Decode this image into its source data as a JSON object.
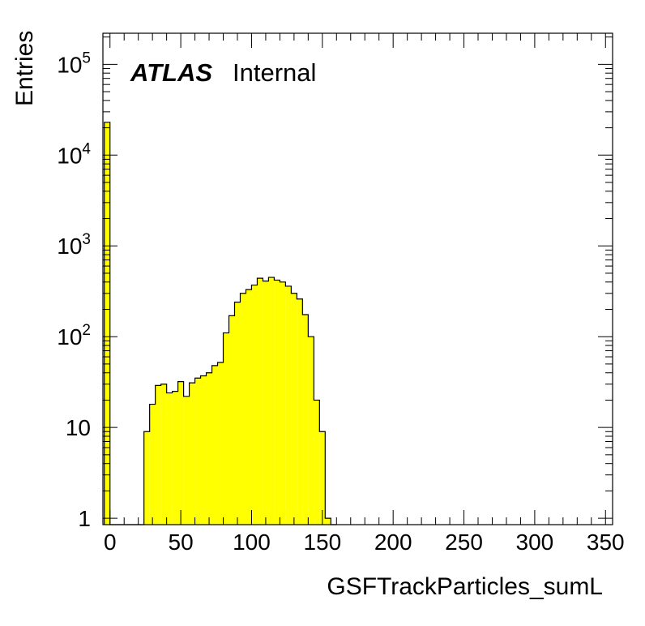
{
  "chart_data": {
    "type": "bar",
    "style": "histogram",
    "title": "",
    "xlabel": "GSFTrackParticles_sumL",
    "ylabel": "Entries",
    "xlim": [
      -5,
      355
    ],
    "ylim": [
      0.85,
      220000
    ],
    "yscale": "log",
    "x_ticks": [
      "0",
      "50",
      "100",
      "150",
      "200",
      "250",
      "300",
      "350"
    ],
    "y_ticks": [
      {
        "value": 1,
        "base": "1",
        "exp": ""
      },
      {
        "value": 10,
        "base": "10",
        "exp": ""
      },
      {
        "value": 100,
        "base": "10",
        "exp": "2"
      },
      {
        "value": 1000,
        "base": "10",
        "exp": "3"
      },
      {
        "value": 10000,
        "base": "10",
        "exp": "4"
      },
      {
        "value": 100000,
        "base": "10",
        "exp": "5"
      }
    ],
    "bin_width": 4,
    "bins": [
      {
        "x": -4,
        "y": 23000
      },
      {
        "x": 0,
        "y": 0
      },
      {
        "x": 4,
        "y": 0
      },
      {
        "x": 8,
        "y": 0
      },
      {
        "x": 12,
        "y": 0
      },
      {
        "x": 16,
        "y": 0
      },
      {
        "x": 20,
        "y": 0
      },
      {
        "x": 24,
        "y": 9
      },
      {
        "x": 28,
        "y": 18
      },
      {
        "x": 32,
        "y": 29
      },
      {
        "x": 36,
        "y": 30
      },
      {
        "x": 40,
        "y": 24
      },
      {
        "x": 44,
        "y": 25
      },
      {
        "x": 48,
        "y": 32
      },
      {
        "x": 52,
        "y": 22
      },
      {
        "x": 56,
        "y": 31
      },
      {
        "x": 60,
        "y": 35
      },
      {
        "x": 64,
        "y": 37
      },
      {
        "x": 68,
        "y": 40
      },
      {
        "x": 72,
        "y": 48
      },
      {
        "x": 76,
        "y": 52
      },
      {
        "x": 80,
        "y": 110
      },
      {
        "x": 84,
        "y": 170
      },
      {
        "x": 88,
        "y": 240
      },
      {
        "x": 92,
        "y": 300
      },
      {
        "x": 96,
        "y": 330
      },
      {
        "x": 100,
        "y": 370
      },
      {
        "x": 104,
        "y": 440
      },
      {
        "x": 108,
        "y": 410
      },
      {
        "x": 112,
        "y": 450
      },
      {
        "x": 116,
        "y": 420
      },
      {
        "x": 120,
        "y": 400
      },
      {
        "x": 124,
        "y": 360
      },
      {
        "x": 128,
        "y": 300
      },
      {
        "x": 132,
        "y": 260
      },
      {
        "x": 136,
        "y": 175
      },
      {
        "x": 140,
        "y": 100
      },
      {
        "x": 144,
        "y": 20
      },
      {
        "x": 148,
        "y": 9
      },
      {
        "x": 152,
        "y": 1
      },
      {
        "x": 156,
        "y": 0
      }
    ],
    "color": "#ffff00",
    "grid": false
  },
  "label": {
    "experiment": "ATLAS",
    "status": "Internal"
  }
}
